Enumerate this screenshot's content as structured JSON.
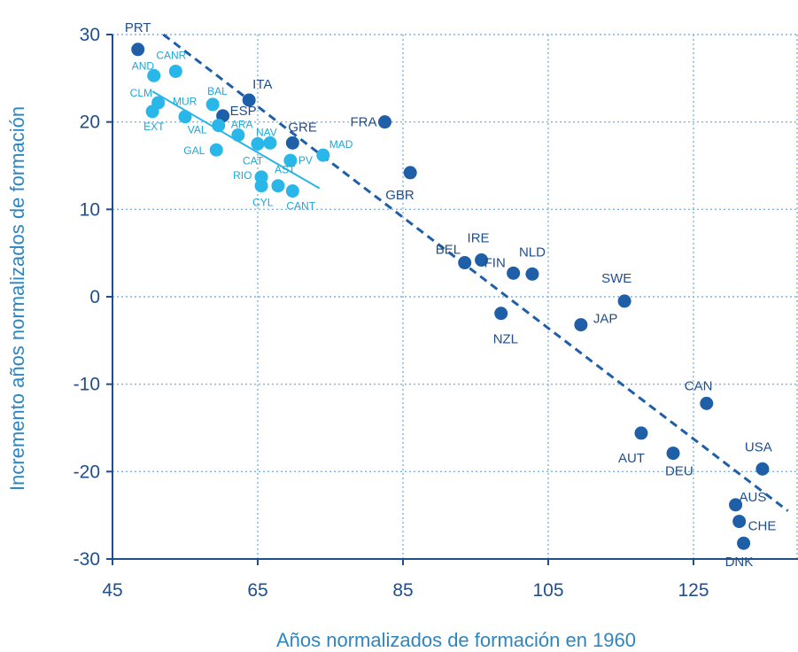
{
  "colors": {
    "oecd_point": "#1f5fa8",
    "region_point": "#29b6e8",
    "axis": "#1f4e8c",
    "grid": "#7fb4e6",
    "trend_oecd": "#1f5fa8",
    "trend_region": "#29b6e8",
    "axis_title": "#2e86c1"
  },
  "chart_data": {
    "type": "scatter",
    "title": "",
    "xlabel": "Años normalizados de formación en 1960",
    "ylabel": "Incremento años normalizados de formación",
    "xlim": [
      45,
      138
    ],
    "ylim": [
      -30,
      30
    ],
    "xticks": [
      45,
      65,
      85,
      105,
      125
    ],
    "yticks": [
      -30,
      -20,
      -10,
      0,
      10,
      20,
      30
    ],
    "grid": true,
    "series": [
      {
        "points": [
          {
            "label": "PRT",
            "x": 48.5,
            "y": 28.3
          },
          {
            "label": "ITA",
            "x": 63.8,
            "y": 22.5
          },
          {
            "label": "ESP",
            "x": 60.2,
            "y": 20.7
          },
          {
            "label": "GRE",
            "x": 69.8,
            "y": 17.6
          },
          {
            "label": "FRA",
            "x": 82.5,
            "y": 20.0
          },
          {
            "label": "GBR",
            "x": 86.0,
            "y": 14.2
          },
          {
            "label": "BEL",
            "x": 93.5,
            "y": 3.9
          },
          {
            "label": "IRE",
            "x": 95.8,
            "y": 4.2
          },
          {
            "label": "FIN",
            "x": 100.2,
            "y": 2.7
          },
          {
            "label": "NLD",
            "x": 102.8,
            "y": 2.6
          },
          {
            "label": "NZL",
            "x": 98.5,
            "y": -1.9
          },
          {
            "label": "JAP",
            "x": 109.5,
            "y": -3.2
          },
          {
            "label": "SWE",
            "x": 115.5,
            "y": -0.5
          },
          {
            "label": "CAN",
            "x": 126.8,
            "y": -12.2
          },
          {
            "label": "AUT",
            "x": 117.8,
            "y": -15.6
          },
          {
            "label": "DEU",
            "x": 122.2,
            "y": -17.9
          },
          {
            "label": "USA",
            "x": 134.5,
            "y": -19.7
          },
          {
            "label": "AUS",
            "x": 130.8,
            "y": -23.8
          },
          {
            "label": "CHE",
            "x": 131.3,
            "y": -25.7
          },
          {
            "label": "DNK",
            "x": 131.9,
            "y": -28.2
          }
        ]
      },
      {
        "points": [
          {
            "label": "AND",
            "x": 50.7,
            "y": 25.3
          },
          {
            "label": "CANR",
            "x": 53.7,
            "y": 25.8
          },
          {
            "label": "CLM",
            "x": 51.3,
            "y": 22.2
          },
          {
            "label": "EXT",
            "x": 50.5,
            "y": 21.2
          },
          {
            "label": "MUR",
            "x": 55.0,
            "y": 20.6
          },
          {
            "label": "BAL",
            "x": 58.8,
            "y": 22.0
          },
          {
            "label": "VAL",
            "x": 59.6,
            "y": 19.6
          },
          {
            "label": "ARA",
            "x": 62.3,
            "y": 18.5
          },
          {
            "label": "NAV",
            "x": 66.7,
            "y": 17.6
          },
          {
            "label": "CAT",
            "x": 65.0,
            "y": 17.5
          },
          {
            "label": "PV",
            "x": 69.5,
            "y": 15.6
          },
          {
            "label": "MAD",
            "x": 74.0,
            "y": 16.2
          },
          {
            "label": "GAL",
            "x": 59.3,
            "y": 16.8
          },
          {
            "label": "RIO",
            "x": 65.5,
            "y": 13.7
          },
          {
            "label": "AST",
            "x": 67.8,
            "y": 12.7
          },
          {
            "label": "CYL",
            "x": 65.5,
            "y": 12.7
          },
          {
            "label": "CANT",
            "x": 69.8,
            "y": 12.1
          }
        ]
      }
    ],
    "trendlines": [
      {
        "style": "dashed",
        "from": [
          52.0,
          30.0
        ],
        "to": [
          138.0,
          -24.5
        ]
      },
      {
        "style": "solid",
        "from": [
          50.5,
          23.5
        ],
        "to": [
          73.5,
          12.4
        ]
      }
    ]
  }
}
